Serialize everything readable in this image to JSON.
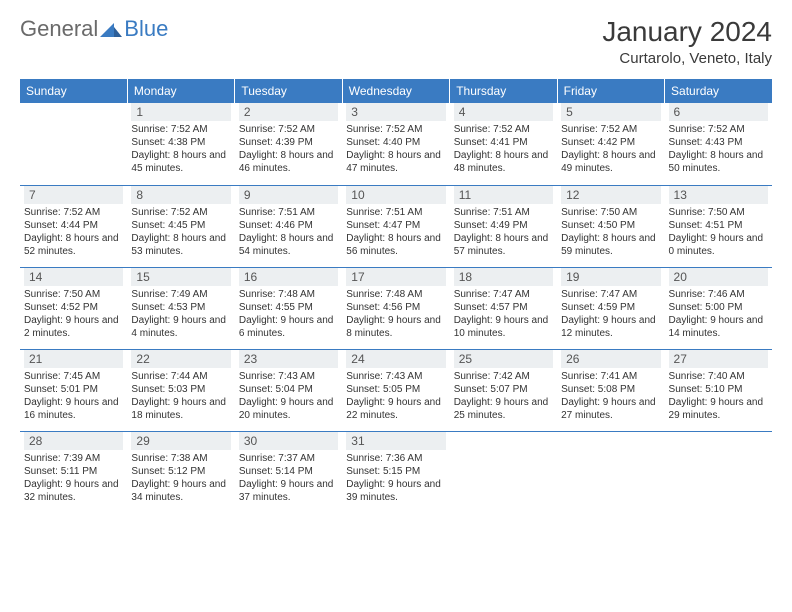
{
  "brand": {
    "part1": "General",
    "part2": "Blue"
  },
  "title": {
    "month": "January 2024",
    "location": "Curtarolo, Veneto, Italy"
  },
  "colors": {
    "header_bg": "#3a7bc2",
    "header_text": "#ffffff",
    "daynum_bg": "#eceff1",
    "row_border": "#3a7bc2",
    "brand_gray": "#6a6a6a",
    "brand_blue": "#3a7bc2"
  },
  "days_of_week": [
    "Sunday",
    "Monday",
    "Tuesday",
    "Wednesday",
    "Thursday",
    "Friday",
    "Saturday"
  ],
  "weeks": [
    [
      null,
      {
        "n": "1",
        "sunrise": "7:52 AM",
        "sunset": "4:38 PM",
        "daylight": "8 hours and 45 minutes."
      },
      {
        "n": "2",
        "sunrise": "7:52 AM",
        "sunset": "4:39 PM",
        "daylight": "8 hours and 46 minutes."
      },
      {
        "n": "3",
        "sunrise": "7:52 AM",
        "sunset": "4:40 PM",
        "daylight": "8 hours and 47 minutes."
      },
      {
        "n": "4",
        "sunrise": "7:52 AM",
        "sunset": "4:41 PM",
        "daylight": "8 hours and 48 minutes."
      },
      {
        "n": "5",
        "sunrise": "7:52 AM",
        "sunset": "4:42 PM",
        "daylight": "8 hours and 49 minutes."
      },
      {
        "n": "6",
        "sunrise": "7:52 AM",
        "sunset": "4:43 PM",
        "daylight": "8 hours and 50 minutes."
      }
    ],
    [
      {
        "n": "7",
        "sunrise": "7:52 AM",
        "sunset": "4:44 PM",
        "daylight": "8 hours and 52 minutes."
      },
      {
        "n": "8",
        "sunrise": "7:52 AM",
        "sunset": "4:45 PM",
        "daylight": "8 hours and 53 minutes."
      },
      {
        "n": "9",
        "sunrise": "7:51 AM",
        "sunset": "4:46 PM",
        "daylight": "8 hours and 54 minutes."
      },
      {
        "n": "10",
        "sunrise": "7:51 AM",
        "sunset": "4:47 PM",
        "daylight": "8 hours and 56 minutes."
      },
      {
        "n": "11",
        "sunrise": "7:51 AM",
        "sunset": "4:49 PM",
        "daylight": "8 hours and 57 minutes."
      },
      {
        "n": "12",
        "sunrise": "7:50 AM",
        "sunset": "4:50 PM",
        "daylight": "8 hours and 59 minutes."
      },
      {
        "n": "13",
        "sunrise": "7:50 AM",
        "sunset": "4:51 PM",
        "daylight": "9 hours and 0 minutes."
      }
    ],
    [
      {
        "n": "14",
        "sunrise": "7:50 AM",
        "sunset": "4:52 PM",
        "daylight": "9 hours and 2 minutes."
      },
      {
        "n": "15",
        "sunrise": "7:49 AM",
        "sunset": "4:53 PM",
        "daylight": "9 hours and 4 minutes."
      },
      {
        "n": "16",
        "sunrise": "7:48 AM",
        "sunset": "4:55 PM",
        "daylight": "9 hours and 6 minutes."
      },
      {
        "n": "17",
        "sunrise": "7:48 AM",
        "sunset": "4:56 PM",
        "daylight": "9 hours and 8 minutes."
      },
      {
        "n": "18",
        "sunrise": "7:47 AM",
        "sunset": "4:57 PM",
        "daylight": "9 hours and 10 minutes."
      },
      {
        "n": "19",
        "sunrise": "7:47 AM",
        "sunset": "4:59 PM",
        "daylight": "9 hours and 12 minutes."
      },
      {
        "n": "20",
        "sunrise": "7:46 AM",
        "sunset": "5:00 PM",
        "daylight": "9 hours and 14 minutes."
      }
    ],
    [
      {
        "n": "21",
        "sunrise": "7:45 AM",
        "sunset": "5:01 PM",
        "daylight": "9 hours and 16 minutes."
      },
      {
        "n": "22",
        "sunrise": "7:44 AM",
        "sunset": "5:03 PM",
        "daylight": "9 hours and 18 minutes."
      },
      {
        "n": "23",
        "sunrise": "7:43 AM",
        "sunset": "5:04 PM",
        "daylight": "9 hours and 20 minutes."
      },
      {
        "n": "24",
        "sunrise": "7:43 AM",
        "sunset": "5:05 PM",
        "daylight": "9 hours and 22 minutes."
      },
      {
        "n": "25",
        "sunrise": "7:42 AM",
        "sunset": "5:07 PM",
        "daylight": "9 hours and 25 minutes."
      },
      {
        "n": "26",
        "sunrise": "7:41 AM",
        "sunset": "5:08 PM",
        "daylight": "9 hours and 27 minutes."
      },
      {
        "n": "27",
        "sunrise": "7:40 AM",
        "sunset": "5:10 PM",
        "daylight": "9 hours and 29 minutes."
      }
    ],
    [
      {
        "n": "28",
        "sunrise": "7:39 AM",
        "sunset": "5:11 PM",
        "daylight": "9 hours and 32 minutes."
      },
      {
        "n": "29",
        "sunrise": "7:38 AM",
        "sunset": "5:12 PM",
        "daylight": "9 hours and 34 minutes."
      },
      {
        "n": "30",
        "sunrise": "7:37 AM",
        "sunset": "5:14 PM",
        "daylight": "9 hours and 37 minutes."
      },
      {
        "n": "31",
        "sunrise": "7:36 AM",
        "sunset": "5:15 PM",
        "daylight": "9 hours and 39 minutes."
      },
      null,
      null,
      null
    ]
  ],
  "labels": {
    "sunrise": "Sunrise:",
    "sunset": "Sunset:",
    "daylight": "Daylight:"
  }
}
